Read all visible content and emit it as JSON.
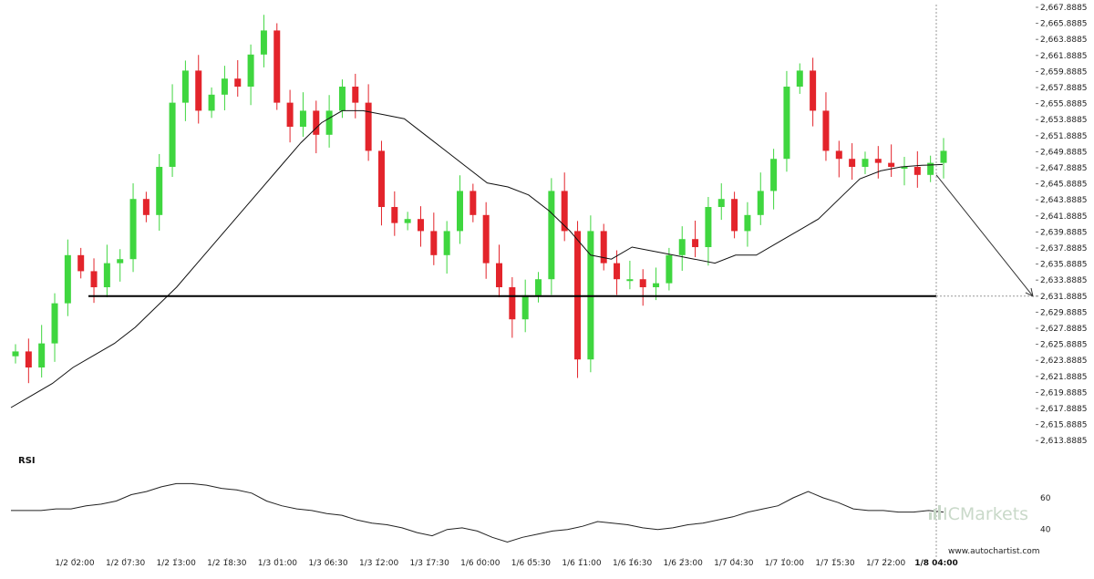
{
  "chart_data": {
    "type": "candlestick",
    "price_axis": {
      "ticks": [
        "2,667.8885",
        "2,665.8885",
        "2,663.8885",
        "2,661.8885",
        "2,659.8885",
        "2,657.8885",
        "2,655.8885",
        "2,653.8885",
        "2,651.8885",
        "2,649.8885",
        "2,647.8885",
        "2,645.8885",
        "2,643.8885",
        "2,641.8885",
        "2,639.8885",
        "2,637.8885",
        "2,635.8885",
        "2,633.8885",
        "2,631.8885",
        "2,629.8885",
        "2,627.8885",
        "2,625.8885",
        "2,623.8885",
        "2,621.8885",
        "2,619.8885",
        "2,617.8885",
        "2,615.8885",
        "2,613.8885"
      ],
      "range": [
        2612.8885,
        2668.3885
      ]
    },
    "time_axis": {
      "labels": [
        "1/2 02:00",
        "1/2 07:30",
        "1/2 13:00",
        "1/2 18:30",
        "1/3 01:00",
        "1/3 06:30",
        "1/3 12:00",
        "1/3 17:30",
        "1/6 00:00",
        "1/6 05:30",
        "1/6 11:00",
        "1/6 16:30",
        "1/6 23:00",
        "1/7 04:30",
        "1/7 10:00",
        "1/7 15:30",
        "1/7 22:00"
      ],
      "current_label": "1/8 04:00"
    },
    "close_series": [
      2625.0,
      2623.0,
      2626.0,
      2631.0,
      2637.0,
      2635.0,
      2633.0,
      2636.0,
      2636.5,
      2644.0,
      2642.0,
      2648.0,
      2656.0,
      2660.0,
      2655.0,
      2657.0,
      2659.0,
      2658.0,
      2662.0,
      2665.0,
      2656.0,
      2653.0,
      2655.0,
      2652.0,
      2655.0,
      2658.0,
      2656.0,
      2650.0,
      2643.0,
      2641.0,
      2641.5,
      2640.0,
      2637.0,
      2640.0,
      2645.0,
      2642.0,
      2636.0,
      2633.0,
      2629.0,
      2632.0,
      2634.0,
      2645.0,
      2640.0,
      2624.0,
      2640.0,
      2636.0,
      2634.0,
      2634.0,
      2633.0,
      2633.5,
      2637.0,
      2639.0,
      2638.0,
      2643.0,
      2644.0,
      2640.0,
      2642.0,
      2645.0,
      2649.0,
      2658.0,
      2660.0,
      2655.0,
      2650.0,
      2649.0,
      2648.0,
      2649.0,
      2648.5,
      2648.0,
      2648.0,
      2647.0,
      2648.5,
      2650.0
    ],
    "moving_average": [
      2618.0,
      2619.5,
      2621.0,
      2623.0,
      2624.5,
      2626.0,
      2628.0,
      2630.5,
      2633.0,
      2636.0,
      2639.0,
      2642.0,
      2645.0,
      2648.0,
      2651.0,
      2653.5,
      2655.0,
      2655.0,
      2654.5,
      2654.0,
      2652.0,
      2650.0,
      2648.0,
      2646.0,
      2645.5,
      2644.5,
      2642.5,
      2640.0,
      2637.0,
      2636.5,
      2638.0,
      2637.5,
      2637.0,
      2636.5,
      2636.0,
      2637.0,
      2637.0,
      2638.5,
      2640.0,
      2641.5,
      2644.0,
      2646.5,
      2647.5,
      2648.0,
      2648.2,
      2648.3
    ],
    "support_level": {
      "value": 2631.8885,
      "line_color": "#000000"
    },
    "forecast_arrow": {
      "target": 2631.8885,
      "color": "#333333"
    },
    "colors": {
      "up_candle": "#3fd63f",
      "down_candle": "#e3242b",
      "moving_average": "#111111",
      "rsi_line": "#222222",
      "grid": "#d0d0d0"
    },
    "rsi": {
      "label": "RSI",
      "ticks": [
        "60",
        "40"
      ],
      "range": [
        30,
        75
      ],
      "values": [
        52,
        52,
        52,
        53,
        53,
        55,
        56,
        58,
        62,
        64,
        67,
        69,
        69,
        68,
        66,
        65,
        63,
        58,
        55,
        53,
        52,
        50,
        49,
        46,
        44,
        43,
        41,
        38,
        36,
        40,
        41,
        39,
        35,
        32,
        35,
        37,
        39,
        40,
        42,
        45,
        44,
        43,
        41,
        40,
        41,
        43,
        44,
        46,
        48,
        51,
        53,
        55,
        60,
        64,
        60,
        57,
        53,
        52,
        52,
        51,
        51,
        52,
        51
      ]
    },
    "watermark": "ICMarkets",
    "source": "www.autochartist.com"
  }
}
